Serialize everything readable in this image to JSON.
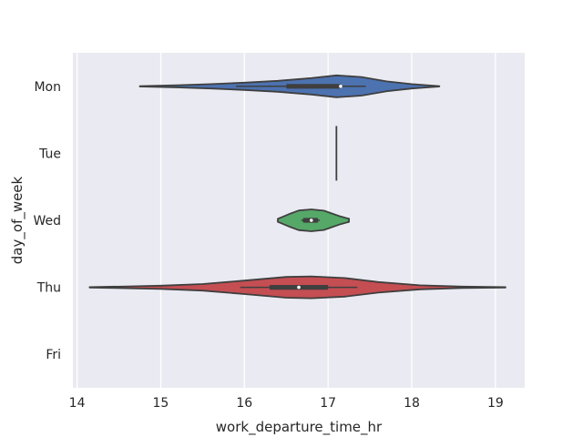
{
  "chart_data": {
    "type": "violin",
    "orientation": "horizontal",
    "xlabel": "work_departure_time_hr",
    "ylabel": "day_of_week",
    "xlim": [
      13.95,
      19.35
    ],
    "xticks": [
      14,
      15,
      16,
      17,
      18,
      19
    ],
    "grid": true,
    "categories": [
      "Mon",
      "Tue",
      "Wed",
      "Thu",
      "Fri"
    ],
    "series": [
      {
        "category": "Mon",
        "color": "#4c72b0",
        "range": [
          14.75,
          18.33
        ],
        "whisker": [
          15.9,
          17.45
        ],
        "quartiles": [
          16.5,
          17.15
        ],
        "median": 17.15,
        "density": [
          [
            14.75,
            0.02
          ],
          [
            15.2,
            0.1
          ],
          [
            15.6,
            0.2
          ],
          [
            16.0,
            0.33
          ],
          [
            16.4,
            0.5
          ],
          [
            16.8,
            0.75
          ],
          [
            17.1,
            1.0
          ],
          [
            17.4,
            0.85
          ],
          [
            17.7,
            0.45
          ],
          [
            18.0,
            0.2
          ],
          [
            18.33,
            0.02
          ]
        ]
      },
      {
        "category": "Tue",
        "color": "#dd8452",
        "value": 17.1
      },
      {
        "category": "Wed",
        "color": "#55a868",
        "range": [
          16.4,
          17.25
        ],
        "whisker": [
          16.68,
          16.9
        ],
        "quartiles": [
          16.7,
          16.88
        ],
        "median": 16.8,
        "density": [
          [
            16.4,
            0.14
          ],
          [
            16.45,
            0.3
          ],
          [
            16.55,
            0.62
          ],
          [
            16.65,
            0.9
          ],
          [
            16.8,
            1.0
          ],
          [
            16.95,
            0.88
          ],
          [
            17.05,
            0.62
          ],
          [
            17.15,
            0.35
          ],
          [
            17.25,
            0.14
          ]
        ]
      },
      {
        "category": "Thu",
        "color": "#c44e52",
        "range": [
          14.15,
          19.12
        ],
        "whisker": [
          15.95,
          17.35
        ],
        "quartiles": [
          16.3,
          17.0
        ],
        "median": 16.65,
        "density": [
          [
            14.15,
            0.02
          ],
          [
            14.6,
            0.08
          ],
          [
            15.0,
            0.15
          ],
          [
            15.5,
            0.3
          ],
          [
            16.0,
            0.62
          ],
          [
            16.5,
            0.95
          ],
          [
            16.8,
            1.0
          ],
          [
            17.2,
            0.85
          ],
          [
            17.6,
            0.48
          ],
          [
            18.1,
            0.18
          ],
          [
            18.6,
            0.07
          ],
          [
            19.12,
            0.02
          ]
        ]
      },
      {
        "category": "Fri",
        "color": "#8172b3"
      }
    ]
  }
}
